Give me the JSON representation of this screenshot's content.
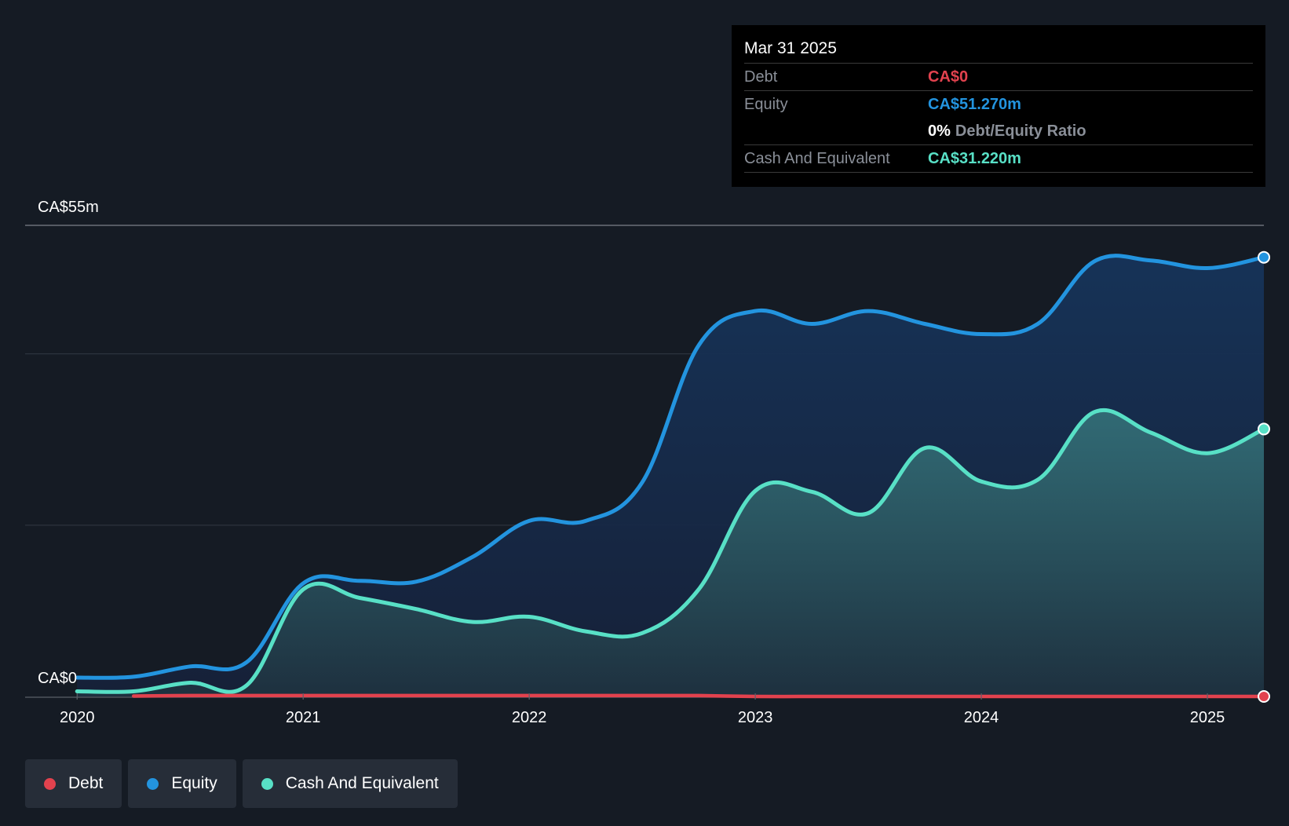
{
  "chart_data": {
    "type": "area",
    "x": [
      2020.0,
      2020.25,
      2020.5,
      2020.75,
      2021.0,
      2021.25,
      2021.5,
      2021.75,
      2022.0,
      2022.25,
      2022.5,
      2022.75,
      2023.0,
      2023.25,
      2023.5,
      2023.75,
      2024.0,
      2024.25,
      2024.5,
      2024.75,
      2025.0,
      2025.25
    ],
    "x_ticks": [
      {
        "value": 2020,
        "label": "2020"
      },
      {
        "value": 2021,
        "label": "2021"
      },
      {
        "value": 2022,
        "label": "2022"
      },
      {
        "value": 2023,
        "label": "2023"
      },
      {
        "value": 2024,
        "label": "2024"
      },
      {
        "value": 2025,
        "label": "2025"
      }
    ],
    "xlim": [
      2019.77,
      2025.25
    ],
    "ylim": [
      0,
      55
    ],
    "y_labels": {
      "top": "CA$55m",
      "bottom": "CA$0"
    },
    "grid": true,
    "series": [
      {
        "name": "Equity",
        "color": "#2394df",
        "fill": true,
        "values": [
          2.2,
          2.3,
          3.5,
          4.0,
          13.2,
          13.5,
          13.4,
          16.3,
          20.5,
          20.5,
          25.0,
          41.0,
          45.0,
          43.5,
          45.0,
          43.5,
          42.3,
          43.5,
          50.8,
          50.9,
          50.0,
          51.27
        ]
      },
      {
        "name": "Cash And Equivalent",
        "color": "#58e0c6",
        "fill": true,
        "values": [
          0.6,
          0.6,
          1.6,
          1.3,
          12.5,
          11.5,
          10.2,
          8.7,
          9.3,
          7.6,
          7.4,
          12.5,
          24.0,
          23.9,
          21.4,
          29.0,
          25.1,
          25.3,
          33.2,
          30.8,
          28.4,
          31.22
        ]
      },
      {
        "name": "Debt",
        "color": "#e2424e",
        "fill": false,
        "values": [
          null,
          0.05,
          0.1,
          0.1,
          0.1,
          0.1,
          0.1,
          0.1,
          0.1,
          0.1,
          0.1,
          0.1,
          0.0,
          0.0,
          0.0,
          0.0,
          0.0,
          0.0,
          0.0,
          0.0,
          0.0,
          0.0
        ]
      }
    ]
  },
  "tooltip": {
    "date": "Mar 31 2025",
    "debt_label": "Debt",
    "debt_value": "CA$0",
    "equity_label": "Equity",
    "equity_value": "CA$51.270m",
    "ratio_value": "0%",
    "ratio_label": "Debt/Equity Ratio",
    "cash_label": "Cash And Equivalent",
    "cash_value": "CA$31.220m"
  },
  "legend": [
    {
      "label": "Debt",
      "color": "#e2424e"
    },
    {
      "label": "Equity",
      "color": "#2394df"
    },
    {
      "label": "Cash And Equivalent",
      "color": "#58e0c6"
    }
  ]
}
